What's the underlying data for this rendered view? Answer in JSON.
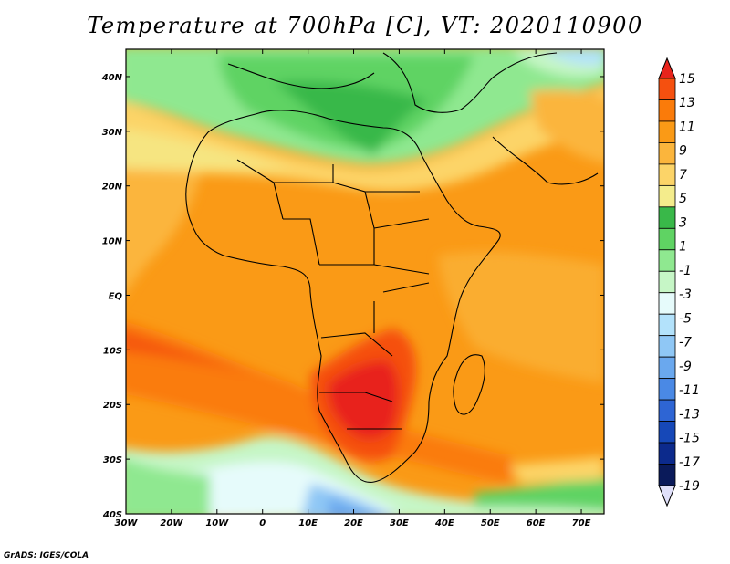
{
  "title": "Temperature at 700hPa [C], VT: 2020110900",
  "credit": "GrADS: IGES/COLA",
  "map": {
    "lon_range": [
      -30,
      75
    ],
    "lat_range": [
      -40,
      45
    ],
    "x_ticks": [
      "30W",
      "20W",
      "10W",
      "0",
      "10E",
      "20E",
      "30E",
      "40E",
      "50E",
      "60E",
      "70E"
    ],
    "y_ticks": [
      "40N",
      "30N",
      "20N",
      "10N",
      "EQ",
      "10S",
      "20S",
      "30S",
      "40S"
    ]
  },
  "colorbar": {
    "labels": [
      "15",
      "13",
      "11",
      "9",
      "7",
      "5",
      "3",
      "1",
      "-1",
      "-3",
      "-5",
      "-7",
      "-9",
      "-11",
      "-13",
      "-15",
      "-17",
      "-19"
    ],
    "colors": [
      "#e8241c",
      "#f5500f",
      "#fa7b0a",
      "#fa9a16",
      "#fbb53c",
      "#fcd468",
      "#f4ec8c",
      "#39b849",
      "#5fd363",
      "#8fe890",
      "#c6f6c6",
      "#e6fbfb",
      "#b3e2fb",
      "#8fc7f5",
      "#6aa8ee",
      "#4a89e5",
      "#2e65d4",
      "#1648b8",
      "#0c2a8c",
      "#0a1a5a"
    ],
    "top_color": "#e8241c",
    "bottom_color": "#e0e0fa"
  }
}
